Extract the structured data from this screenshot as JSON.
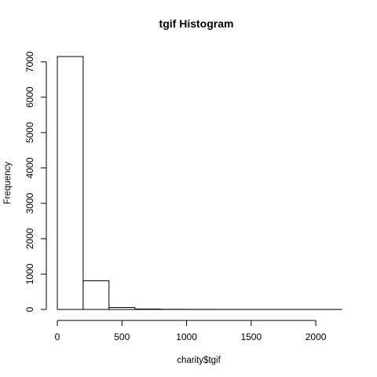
{
  "chart_data": {
    "type": "bar",
    "title": "tgif Histogram",
    "xlabel": "charity$tgif",
    "ylabel": "Frequency",
    "bin_edges": [
      0,
      200,
      400,
      600,
      800,
      1000,
      1200,
      1400,
      1600,
      1800,
      2000,
      2200
    ],
    "values": [
      7150,
      810,
      55,
      12,
      5,
      3,
      2,
      1,
      1,
      1,
      1
    ],
    "xlim": [
      0,
      2200
    ],
    "ylim": [
      0,
      7150
    ],
    "xticks": [
      0,
      500,
      1000,
      1500,
      2000
    ],
    "yticks": [
      0,
      1000,
      2000,
      3000,
      4000,
      5000,
      6000,
      7000
    ],
    "grid": false,
    "colors": {
      "bar_fill": "#ffffff",
      "bar_stroke": "#000000"
    }
  }
}
